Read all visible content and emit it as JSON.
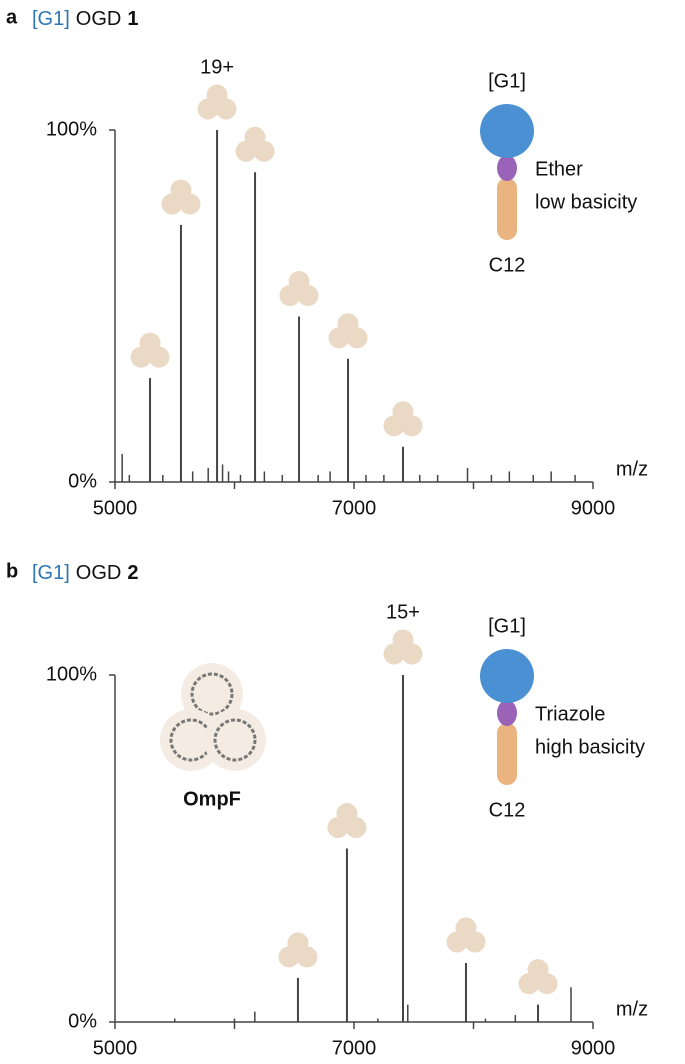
{
  "chart_data": [
    {
      "type": "spectrum",
      "panel": "a",
      "title_tag": "[G1]",
      "title": "OGD",
      "title_number": "1",
      "xlabel": "m/z",
      "xlim": [
        5000,
        9000
      ],
      "xticks": [
        5000,
        7000,
        9000
      ],
      "xminorticks": [
        6000,
        8000
      ],
      "ylim": [
        0,
        100
      ],
      "yticks": [
        {
          "value": 0,
          "label": "0%"
        },
        {
          "value": 100,
          "label": "100%"
        }
      ],
      "color": "#444444",
      "x": [
        5293,
        5552,
        5854,
        6172,
        6540,
        6950,
        7410
      ],
      "values": [
        29.5,
        73,
        100,
        88,
        47,
        35,
        10
      ],
      "noise_x": [
        5060,
        5120,
        5400,
        5650,
        5780,
        5900,
        5950,
        6050,
        6250,
        6400,
        6700,
        6800,
        7100,
        7250,
        7550,
        7700,
        7950,
        8150,
        8300,
        8500,
        8650,
        8850
      ],
      "noise_values": [
        8,
        2,
        2,
        3,
        4,
        5,
        3,
        2,
        3,
        2,
        2,
        3,
        2,
        2,
        2,
        2,
        4,
        2,
        3,
        2,
        3,
        2
      ],
      "annotation": "19+",
      "annotation_index": 2,
      "diagram": {
        "head": "[G1]",
        "linker": "Ether",
        "note": "low basicity",
        "tail": "C12"
      }
    },
    {
      "type": "spectrum",
      "panel": "b",
      "title_tag": "[G1]",
      "title": "OGD",
      "title_number": "2",
      "xlabel": "m/z",
      "xlim": [
        5000,
        9000
      ],
      "xticks": [
        5000,
        7000,
        9000
      ],
      "xminorticks": [
        6000,
        8000
      ],
      "ylim": [
        0,
        100
      ],
      "yticks": [
        {
          "value": 0,
          "label": "0%"
        },
        {
          "value": 100,
          "label": "100%"
        }
      ],
      "color": "#444444",
      "x": [
        6531,
        6941,
        7410,
        7937,
        8540
      ],
      "values": [
        12.7,
        50,
        100,
        17,
        5
      ],
      "noise_x": [
        5500,
        6000,
        6170,
        7200,
        7450,
        8100,
        8350,
        8816
      ],
      "noise_values": [
        1,
        1,
        3,
        1,
        5,
        1,
        2,
        10
      ],
      "annotation": "15+",
      "annotation_index": 2,
      "inset_label": "OmpF",
      "diagram": {
        "head": "[G1]",
        "linker": "Triazole",
        "note": "high basicity",
        "tail": "C12"
      }
    }
  ]
}
